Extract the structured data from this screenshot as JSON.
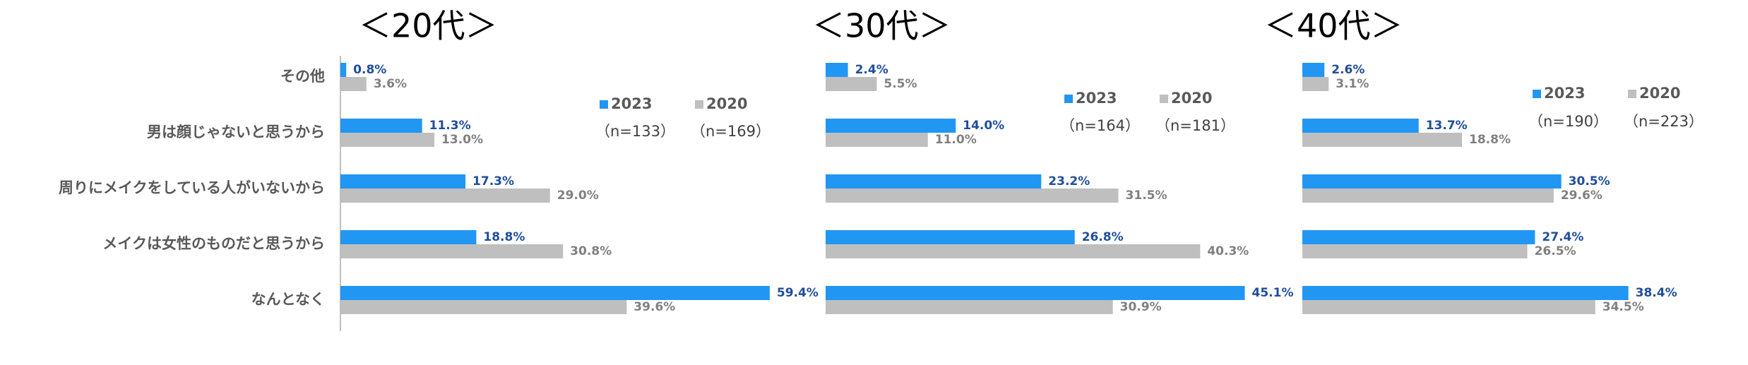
{
  "chart_data": [
    {
      "type": "bar",
      "orientation": "horizontal",
      "title": "＜20代＞",
      "axis_line": true,
      "categories": [
        "その他",
        "男は顔じゃないと思うから",
        "周りにメイクをしている人がいないから",
        "メイクは女性のものだと思うから",
        "なんとなく"
      ],
      "xlim": [
        0,
        60
      ],
      "series": [
        {
          "name": "2023",
          "sample_label": "（n=133）",
          "color": "#2196f3",
          "values": [
            0.8,
            11.3,
            17.3,
            18.8,
            59.4
          ],
          "value_labels": [
            "0.8%",
            "11.3%",
            "17.3%",
            "18.8%",
            "59.4%"
          ]
        },
        {
          "name": "2020",
          "sample_label": "（n=169）",
          "color": "#bfbfbf",
          "values": [
            3.6,
            13.0,
            29.0,
            30.8,
            39.6
          ],
          "value_labels": [
            "3.6%",
            "13.0%",
            "29.0%",
            "30.8%",
            "39.6%"
          ]
        }
      ]
    },
    {
      "type": "bar",
      "orientation": "horizontal",
      "title": "＜30代＞",
      "axis_line": false,
      "xlim": [
        0,
        50
      ],
      "series": [
        {
          "name": "2023",
          "sample_label": "（n=164）",
          "color": "#2196f3",
          "values": [
            2.4,
            14.0,
            23.2,
            26.8,
            45.1
          ],
          "value_labels": [
            "2.4%",
            "14.0%",
            "23.2%",
            "26.8%",
            "45.1%"
          ]
        },
        {
          "name": "2020",
          "sample_label": "（n=181）",
          "color": "#bfbfbf",
          "values": [
            5.5,
            11.0,
            31.5,
            40.3,
            30.9
          ],
          "value_labels": [
            "5.5%",
            "11.0%",
            "31.5%",
            "40.3%",
            "30.9%"
          ]
        }
      ]
    },
    {
      "type": "bar",
      "orientation": "horizontal",
      "title": "＜40代＞",
      "axis_line": false,
      "xlim": [
        0,
        45
      ],
      "series": [
        {
          "name": "2023",
          "sample_label": "（n=190）",
          "color": "#2196f3",
          "values": [
            2.6,
            13.7,
            30.5,
            27.4,
            38.4
          ],
          "value_labels": [
            "2.6%",
            "13.7%",
            "30.5%",
            "27.4%",
            "38.4%"
          ]
        },
        {
          "name": "2020",
          "sample_label": "（n=223）",
          "color": "#bfbfbf",
          "values": [
            3.1,
            18.8,
            29.6,
            26.5,
            34.5
          ],
          "value_labels": [
            "3.1%",
            "18.8%",
            "29.6%",
            "26.5%",
            "34.5%"
          ]
        }
      ]
    }
  ]
}
